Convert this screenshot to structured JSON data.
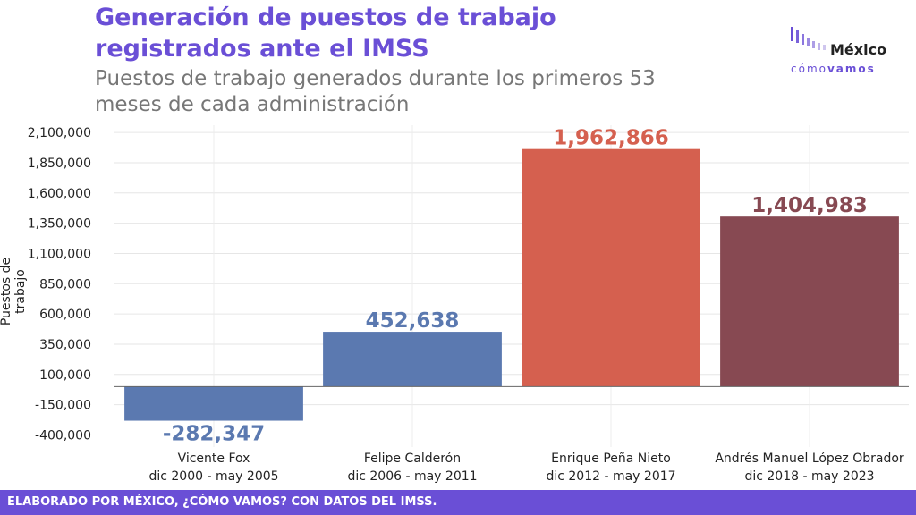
{
  "header": {
    "title": "Generación de puestos de trabajo registrados ante el IMSS",
    "subtitle": "Puestos de trabajo generados durante los primeros 53 meses de cada administración"
  },
  "logo": {
    "word": "México",
    "sub_light": "cómo",
    "sub_bold": "vamos"
  },
  "footer": {
    "text": "ELABORADO POR MÉXICO, ¿CÓMO VAMOS? CON DATOS DEL IMSS."
  },
  "chart_data": {
    "type": "bar",
    "categories": [
      [
        "Vicente Fox",
        "dic 2000 - may 2005"
      ],
      [
        "Felipe Calderón",
        "dic 2006 - may 2011"
      ],
      [
        "Enrique Peña Nieto",
        "dic 2012 - may 2017"
      ],
      [
        "Andrés Manuel López Obrador",
        "dic 2018 - may 2023"
      ]
    ],
    "values": [
      -282347,
      452638,
      1962866,
      1404983
    ],
    "data_labels": [
      "-282,347",
      "452,638",
      "1,962,866",
      "1,404,983"
    ],
    "colors": [
      "#5b79b0",
      "#5b79b0",
      "#d5604f",
      "#874952"
    ],
    "ylabel": "Puestos de trabajo",
    "yticks": [
      -400000,
      -150000,
      100000,
      350000,
      600000,
      850000,
      1100000,
      1350000,
      1600000,
      1850000,
      2100000
    ],
    "ytick_labels": [
      "-400,000",
      "-150,000",
      "100,000",
      "350,000",
      "600,000",
      "850,000",
      "1,100,000",
      "1,350,000",
      "1,600,000",
      "1,850,000",
      "2,100,000"
    ],
    "ylim": [
      -500000,
      2160000
    ],
    "grid": true
  }
}
